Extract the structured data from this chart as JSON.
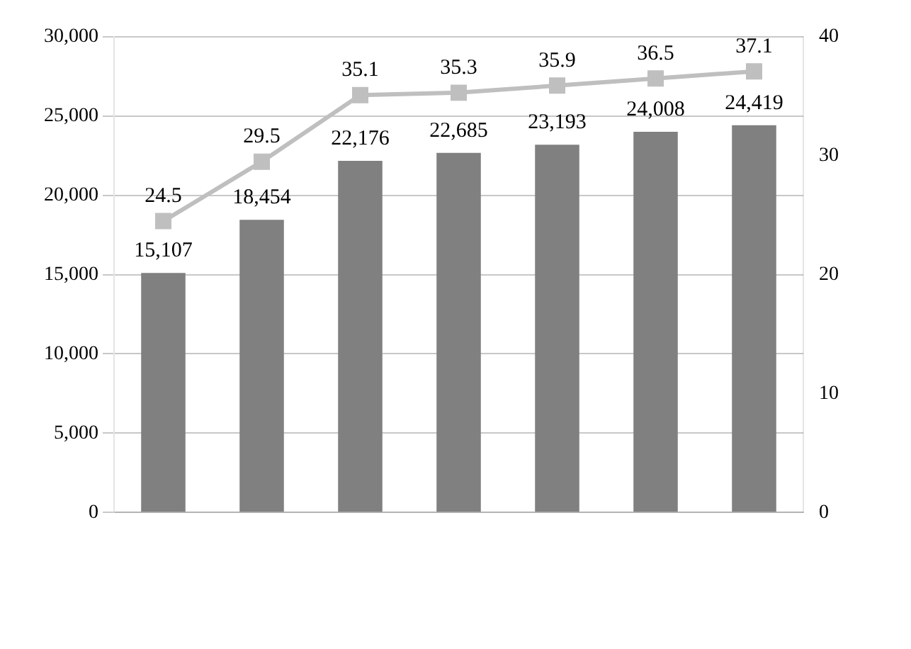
{
  "chart_data": {
    "type": "bar",
    "categories": [
      null,
      null,
      null,
      null,
      null,
      null,
      null
    ],
    "series": [
      {
        "color": "#808080",
        "values": [
          15107,
          18454,
          22176,
          22685,
          23193,
          24008,
          24419
        ],
        "value_labels": [
          "15,107",
          "18,454",
          "22,176",
          "22,685",
          "23,193",
          "24,008",
          "24,419"
        ]
      },
      {
        "type": "line",
        "axis": "y2",
        "color": "#bfbfbf",
        "marker": "square",
        "values": [
          24.5,
          29.5,
          35.1,
          35.3,
          35.9,
          36.5,
          37.1
        ]
      }
    ],
    "ylim": [
      0,
      30000
    ],
    "yticks": [
      {
        "value": 0,
        "label": "0"
      },
      {
        "value": 5000,
        "label": "5,000"
      },
      {
        "value": 10000,
        "label": "10,000"
      },
      {
        "value": 15000,
        "label": "15,000"
      },
      {
        "value": 20000,
        "label": "20,000"
      },
      {
        "value": 25000,
        "label": "25,000"
      },
      {
        "value": 30000,
        "label": "30,000"
      }
    ],
    "y2lim": [
      0,
      40
    ],
    "y2ticks": [
      0,
      10,
      20,
      30,
      40
    ],
    "grid": "y",
    "data_labels": true
  }
}
